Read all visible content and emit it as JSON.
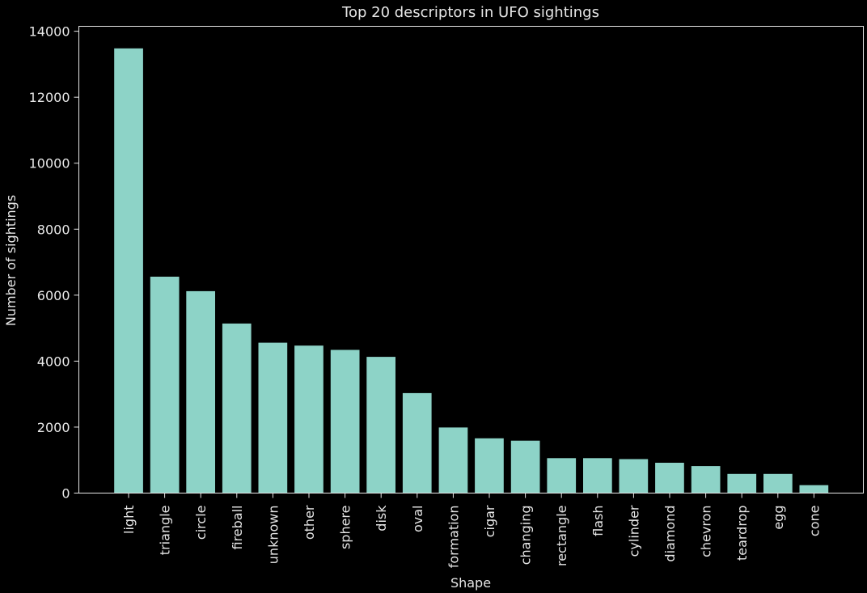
{
  "chart_data": {
    "type": "bar",
    "title": "Top 20 descriptors in UFO sightings",
    "xlabel": "Shape",
    "ylabel": "Number of sightings",
    "categories": [
      "light",
      "triangle",
      "circle",
      "fireball",
      "unknown",
      "other",
      "sphere",
      "disk",
      "oval",
      "formation",
      "cigar",
      "changing",
      "rectangle",
      "flash",
      "cylinder",
      "diamond",
      "chevron",
      "teardrop",
      "egg",
      "cone"
    ],
    "values": [
      13480,
      6560,
      6120,
      5140,
      4560,
      4470,
      4340,
      4130,
      3030,
      1990,
      1660,
      1590,
      1060,
      1060,
      1030,
      920,
      820,
      580,
      580,
      240
    ],
    "yticks": [
      0,
      2000,
      4000,
      6000,
      8000,
      10000,
      12000,
      14000
    ],
    "ylim": [
      0,
      14150
    ],
    "grid": false,
    "colors": {
      "background": "#000000",
      "bar": "#8dd3c7",
      "text": "#e6e6e6",
      "axis": "#e6e6e6"
    }
  }
}
